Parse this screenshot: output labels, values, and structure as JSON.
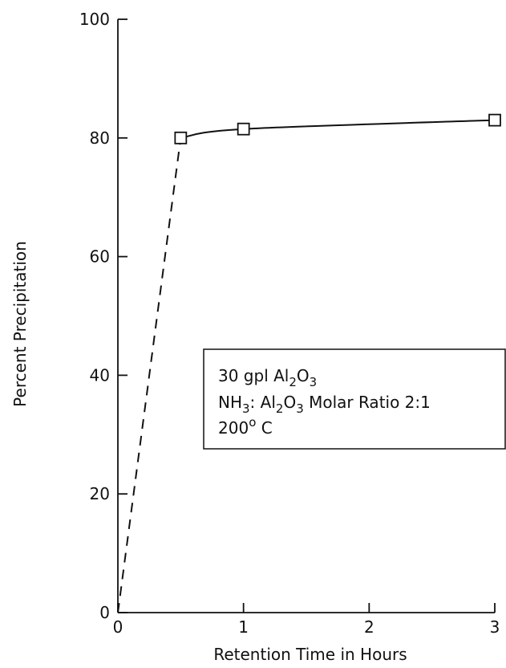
{
  "chart_data": {
    "type": "line",
    "title": "",
    "xlabel": "Retention Time in Hours",
    "ylabel": "Percent Precipitation",
    "xlim": [
      0,
      3
    ],
    "ylim": [
      0,
      100
    ],
    "x_ticks": [
      0,
      1,
      2,
      3
    ],
    "y_ticks": [
      0,
      20,
      40,
      60,
      80,
      100
    ],
    "x_tick_labels": [
      "0",
      "1",
      "2",
      "3"
    ],
    "y_tick_labels": [
      "0",
      "20",
      "40",
      "60",
      "80",
      "100"
    ],
    "grid": false,
    "series": [
      {
        "style": "solid",
        "marker": "square",
        "x": [
          0.5,
          1,
          3
        ],
        "y": [
          80,
          81.5,
          83
        ]
      },
      {
        "style": "dashed",
        "marker": "none",
        "x": [
          0,
          0.5
        ],
        "y": [
          0,
          80
        ]
      }
    ],
    "annotation": {
      "line1": {
        "prefix": "30 gpl Al",
        "sub1": "2",
        "mid": "O",
        "sub2": "3"
      },
      "line2": {
        "a": "NH",
        "a_sub": "3",
        "b": ": Al",
        "b_sub": "2",
        "c": "O",
        "c_sub": "3",
        "d": " Molar Ratio 2:1"
      },
      "line3": {
        "a": "200",
        "sup": "o",
        "b": " C"
      }
    }
  }
}
